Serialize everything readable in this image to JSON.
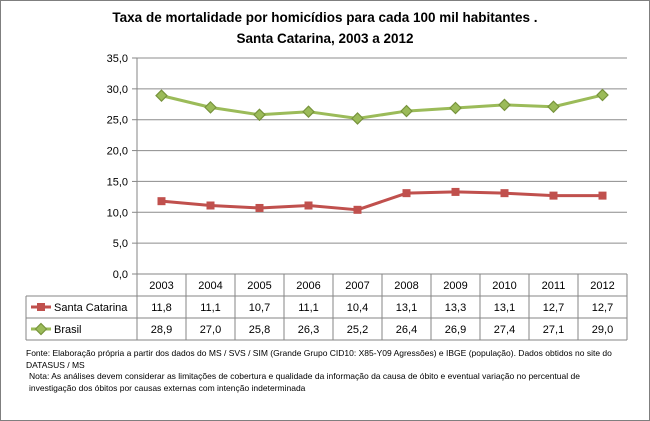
{
  "chart_data": {
    "type": "line",
    "title_line1": "Taxa de mortalidade por homicídios para cada 100 mil habitantes .",
    "title_line2": "Santa Catarina, 2003 a 2012",
    "categories": [
      "2003",
      "2004",
      "2005",
      "2006",
      "2007",
      "2008",
      "2009",
      "2010",
      "2011",
      "2012"
    ],
    "ylim": [
      0,
      35
    ],
    "y_ticks": [
      "0,0",
      "5,0",
      "10,0",
      "15,0",
      "20,0",
      "25,0",
      "30,0",
      "35,0"
    ],
    "y_tick_values": [
      0,
      5,
      10,
      15,
      20,
      25,
      30,
      35
    ],
    "grid": true,
    "legend": "data-table-below",
    "series": [
      {
        "name": "Santa Catarina",
        "color": "#c0504d",
        "marker": "square",
        "values": [
          11.8,
          11.1,
          10.7,
          11.1,
          10.4,
          13.1,
          13.3,
          13.1,
          12.7,
          12.7
        ],
        "labels": [
          "11,8",
          "11,1",
          "10,7",
          "11,1",
          "10,4",
          "13,1",
          "13,3",
          "13,1",
          "12,7",
          "12,7"
        ]
      },
      {
        "name": "Brasil",
        "color": "#9bbb59",
        "marker_color": "#77933c",
        "marker": "diamond",
        "values": [
          28.9,
          27.0,
          25.8,
          26.3,
          25.2,
          26.4,
          26.9,
          27.4,
          27.1,
          29.0
        ],
        "labels": [
          "28,9",
          "27,0",
          "25,8",
          "26,3",
          "25,2",
          "26,4",
          "26,9",
          "27,4",
          "27,1",
          "29,0"
        ]
      }
    ]
  },
  "footer": {
    "source": "Fonte: Elaboração própria a partir dos dados do MS / SVS / SIM (Grande Grupo CID10: X85-Y09 Agressões) e IBGE (população). Dados obtidos no site do DATASUS / MS",
    "note": "Nota:  As análises devem considerar as limitações de cobertura e qualidade da informação da causa de óbito e eventual variação no percentual de investigação dos óbitos  por causas externas com intenção  indeterminada"
  }
}
